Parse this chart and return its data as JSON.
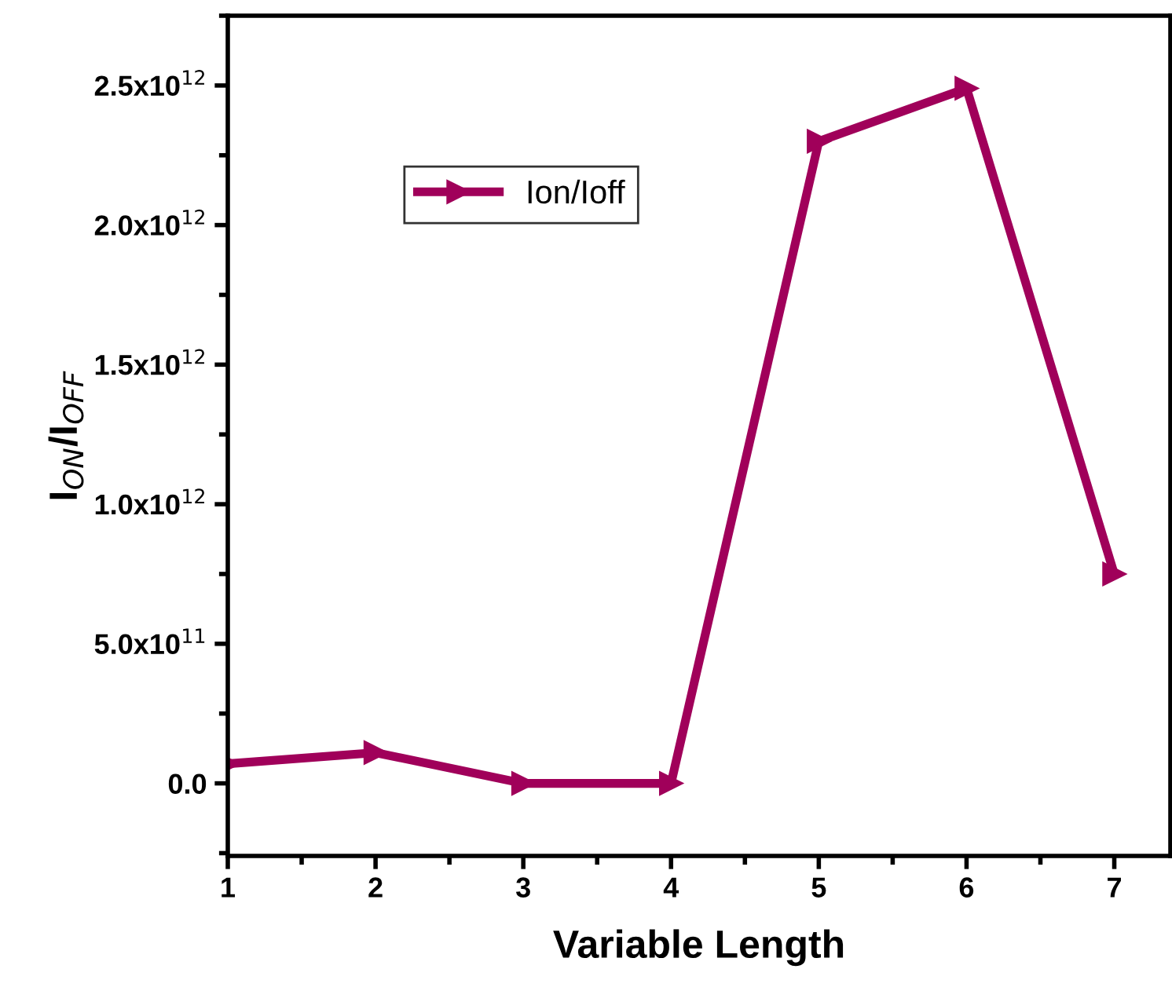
{
  "chart_data": {
    "type": "line",
    "xlabel": "Variable Length",
    "ylabel": "I$_{ON}$/I$_{OFF}$",
    "x": [
      1,
      2,
      3,
      4,
      5,
      6,
      7
    ],
    "series": [
      {
        "name": "Ion/Ioff",
        "color": "#a0005a",
        "values": [
          70000000000.0,
          110000000000.0,
          0,
          0,
          2300000000000.0,
          2490000000000.0,
          750000000000.0
        ]
      }
    ],
    "xlim": [
      1,
      7.38
    ],
    "xticks": [
      1,
      2,
      3,
      4,
      5,
      6,
      7
    ],
    "ylim": [
      -260000000000.0,
      2750000000000.0
    ],
    "yticks": [
      {
        "value": 0,
        "label": "0.0"
      },
      {
        "value": 500000000000.0,
        "label": "5.0x10$^{11}$"
      },
      {
        "value": 1000000000000.0,
        "label": "1.0x10$^{12}$"
      },
      {
        "value": 1500000000000.0,
        "label": "1.5x10$^{12}$"
      },
      {
        "value": 2000000000000.0,
        "label": "2.0x10$^{12}$"
      },
      {
        "value": 2500000000000.0,
        "label": "2.5x10$^{12}$"
      }
    ],
    "marker": "triangle",
    "line_style": "solid",
    "legend": "top left",
    "grid": false
  }
}
